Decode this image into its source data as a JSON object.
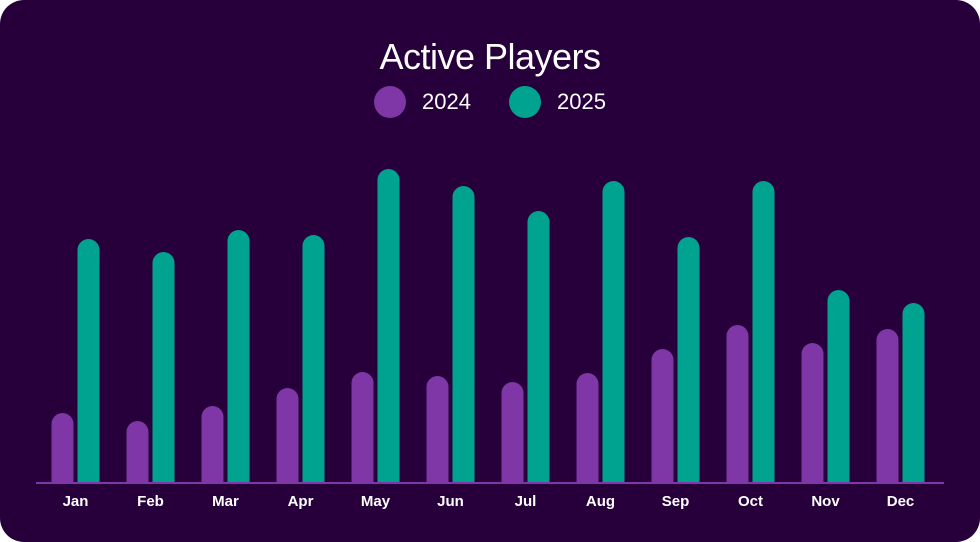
{
  "chart_data": {
    "type": "bar",
    "title": "Active Players",
    "xlabel": "",
    "ylabel": "",
    "categories": [
      "Jan",
      "Feb",
      "Mar",
      "Apr",
      "May",
      "Jun",
      "Jul",
      "Aug",
      "Sep",
      "Oct",
      "Nov",
      "Dec"
    ],
    "series": [
      {
        "name": "2024",
        "color": "#7f36a6",
        "values": [
          70,
          62,
          77,
          95,
          111,
          107,
          101,
          110,
          134,
          158,
          140,
          154
        ]
      },
      {
        "name": "2025",
        "color": "#00a38f",
        "values": [
          244,
          231,
          253,
          248,
          314,
          297,
          272,
          302,
          246,
          302,
          193,
          180
        ]
      }
    ],
    "ylim": [
      0,
      320
    ],
    "grid": false,
    "legend": "top-center"
  },
  "colors": {
    "background": "#27003b",
    "axis": "#7f36a6",
    "text": "#ffffff"
  }
}
